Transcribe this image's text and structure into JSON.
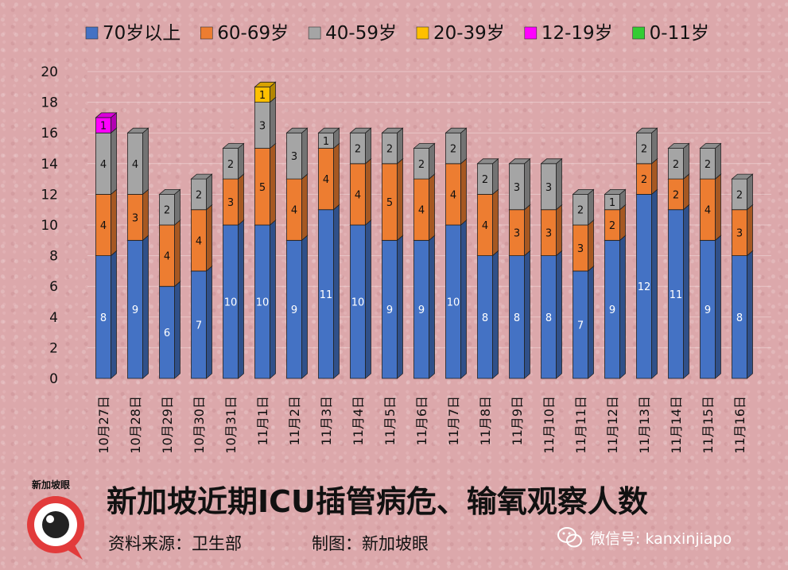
{
  "chart_data": {
    "type": "bar",
    "stacked": true,
    "categories": [
      "10月27日",
      "10月28日",
      "10月29日",
      "10月30日",
      "10月31日",
      "11月1日",
      "11月2日",
      "11月3日",
      "11月4日",
      "11月5日",
      "11月6日",
      "11月7日",
      "11月8日",
      "11月9日",
      "11月10日",
      "11月11日",
      "11月12日",
      "11月13日",
      "11月14日",
      "11月15日",
      "11月16日"
    ],
    "series": [
      {
        "name": "70岁以上",
        "color": "#4472c4",
        "values": [
          8,
          9,
          6,
          7,
          10,
          10,
          9,
          11,
          10,
          9,
          9,
          10,
          8,
          8,
          8,
          7,
          9,
          12,
          11,
          9,
          8
        ]
      },
      {
        "name": "60-69岁",
        "color": "#ed7d31",
        "values": [
          4,
          3,
          4,
          4,
          3,
          5,
          4,
          4,
          4,
          5,
          4,
          4,
          4,
          3,
          3,
          3,
          2,
          2,
          2,
          4,
          3
        ]
      },
      {
        "name": "40-59岁",
        "color": "#a5a5a5",
        "values": [
          4,
          4,
          2,
          2,
          2,
          3,
          3,
          1,
          2,
          2,
          2,
          2,
          2,
          3,
          3,
          2,
          1,
          2,
          2,
          2,
          2
        ]
      },
      {
        "name": "20-39岁",
        "color": "#ffc000",
        "values": [
          0,
          0,
          0,
          0,
          0,
          1,
          0,
          0,
          0,
          0,
          0,
          0,
          0,
          0,
          0,
          0,
          0,
          0,
          0,
          0,
          0
        ]
      },
      {
        "name": "12-19岁",
        "color": "#ff00ff",
        "values": [
          1,
          0,
          0,
          0,
          0,
          0,
          0,
          0,
          0,
          0,
          0,
          0,
          0,
          0,
          0,
          0,
          0,
          0,
          0,
          0,
          0
        ]
      },
      {
        "name": "0-11岁",
        "color": "#33cc33",
        "values": [
          0,
          0,
          0,
          0,
          0,
          0,
          0,
          0,
          0,
          0,
          0,
          0,
          0,
          0,
          0,
          0,
          0,
          0,
          0,
          0,
          0
        ]
      }
    ],
    "title": "新加坡近期ICU插管病危、输氧观察人数",
    "xlabel": "",
    "ylabel": "",
    "ylim": [
      0,
      20
    ],
    "yticks": [
      0,
      2,
      4,
      6,
      8,
      10,
      12,
      14,
      16,
      18,
      20
    ],
    "grid": true,
    "legend_position": "top"
  },
  "footer": {
    "source": "资料来源：卫生部",
    "maker": "制图：新加坡眼",
    "wechat": "微信号: kanxinjiapo",
    "logo_text": "新加坡眼"
  }
}
